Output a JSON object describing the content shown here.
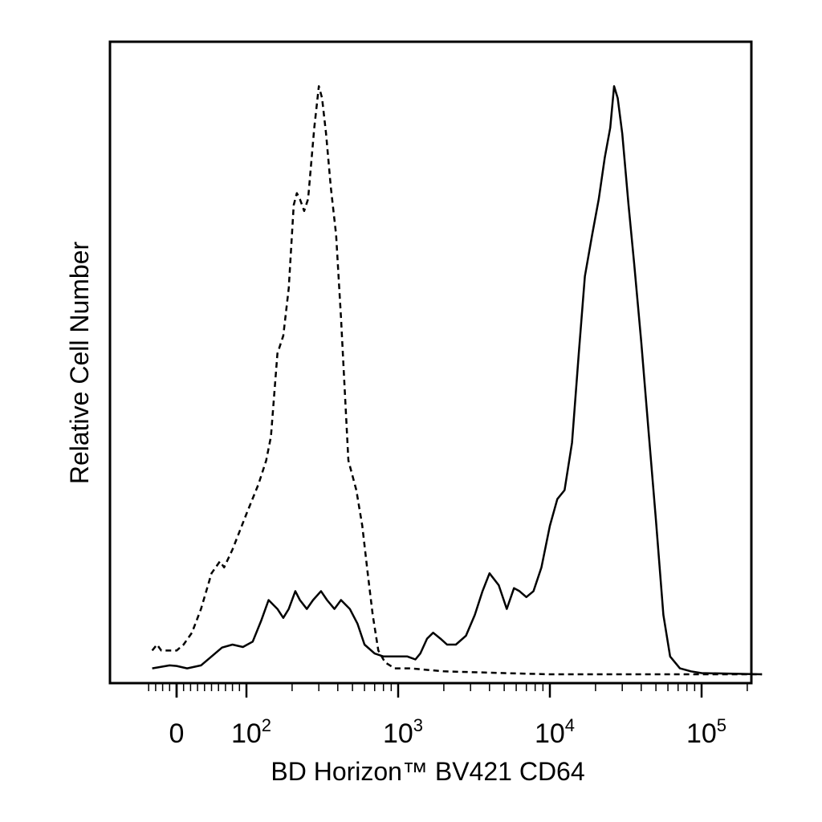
{
  "chart_data": {
    "type": "line",
    "title": "",
    "xlabel": "BD Horizon™ BV421 CD64",
    "ylabel": "Relative Cell Number",
    "x_scale": "biexponential",
    "xlim": [
      -40,
      250000
    ],
    "ylim": [
      0,
      100
    ],
    "grid": false,
    "legend": "none",
    "x_tick_labels": [
      {
        "value": 0,
        "base": "0",
        "exp": ""
      },
      {
        "value": 100,
        "base": "10",
        "exp": "2"
      },
      {
        "value": 1000,
        "base": "10",
        "exp": "3"
      },
      {
        "value": 10000,
        "base": "10",
        "exp": "4"
      },
      {
        "value": 100000,
        "base": "10",
        "exp": "5"
      }
    ],
    "series": [
      {
        "style": "dashed",
        "color": "#000000",
        "points": [
          [
            -35,
            4
          ],
          [
            -28,
            5
          ],
          [
            -22,
            4
          ],
          [
            -12,
            4
          ],
          [
            0,
            4
          ],
          [
            10,
            5
          ],
          [
            22,
            7
          ],
          [
            35,
            11
          ],
          [
            50,
            17
          ],
          [
            62,
            19
          ],
          [
            68,
            18
          ],
          [
            80,
            21
          ],
          [
            100,
            27
          ],
          [
            120,
            32
          ],
          [
            135,
            36
          ],
          [
            145,
            40
          ],
          [
            160,
            54
          ],
          [
            175,
            57
          ],
          [
            190,
            65
          ],
          [
            205,
            79
          ],
          [
            215,
            81
          ],
          [
            225,
            80
          ],
          [
            240,
            78
          ],
          [
            255,
            80
          ],
          [
            280,
            92
          ],
          [
            300,
            99
          ],
          [
            315,
            97
          ],
          [
            335,
            91
          ],
          [
            360,
            82
          ],
          [
            390,
            74
          ],
          [
            420,
            60
          ],
          [
            470,
            36
          ],
          [
            530,
            31
          ],
          [
            580,
            25
          ],
          [
            630,
            17
          ],
          [
            680,
            10
          ],
          [
            740,
            4
          ],
          [
            820,
            2
          ],
          [
            950,
            1
          ],
          [
            1200,
            1
          ],
          [
            2000,
            0.5
          ],
          [
            5000,
            0.2
          ],
          [
            10000,
            0
          ],
          [
            100000,
            0
          ],
          [
            250000,
            0
          ]
        ]
      },
      {
        "style": "solid",
        "color": "#000000",
        "points": [
          [
            -35,
            1
          ],
          [
            -20,
            1.3
          ],
          [
            -10,
            1.5
          ],
          [
            0,
            1.4
          ],
          [
            15,
            1
          ],
          [
            35,
            1.5
          ],
          [
            50,
            3
          ],
          [
            65,
            4.5
          ],
          [
            80,
            5
          ],
          [
            95,
            4.6
          ],
          [
            110,
            5.5
          ],
          [
            125,
            9
          ],
          [
            140,
            12.5
          ],
          [
            160,
            11
          ],
          [
            175,
            9.5
          ],
          [
            190,
            11
          ],
          [
            210,
            14
          ],
          [
            225,
            12.5
          ],
          [
            250,
            11
          ],
          [
            275,
            12.5
          ],
          [
            310,
            14
          ],
          [
            340,
            12.5
          ],
          [
            380,
            11
          ],
          [
            420,
            12.5
          ],
          [
            480,
            11
          ],
          [
            540,
            8.5
          ],
          [
            600,
            5
          ],
          [
            700,
            3.5
          ],
          [
            800,
            3
          ],
          [
            950,
            3
          ],
          [
            1150,
            3
          ],
          [
            1300,
            2.5
          ],
          [
            1400,
            3.5
          ],
          [
            1550,
            6
          ],
          [
            1700,
            7
          ],
          [
            1900,
            6
          ],
          [
            2100,
            5
          ],
          [
            2400,
            5
          ],
          [
            2800,
            6.5
          ],
          [
            3200,
            10
          ],
          [
            3600,
            14
          ],
          [
            4000,
            17
          ],
          [
            4600,
            15
          ],
          [
            5200,
            11
          ],
          [
            5800,
            14.5
          ],
          [
            6300,
            14
          ],
          [
            7000,
            13
          ],
          [
            7800,
            14
          ],
          [
            8800,
            18
          ],
          [
            10000,
            25
          ],
          [
            11200,
            29.5
          ],
          [
            12500,
            31
          ],
          [
            14000,
            39
          ],
          [
            15500,
            54
          ],
          [
            17000,
            67
          ],
          [
            19000,
            74
          ],
          [
            21000,
            80
          ],
          [
            23000,
            87
          ],
          [
            25000,
            92
          ],
          [
            26500,
            99
          ],
          [
            28000,
            97
          ],
          [
            30000,
            91
          ],
          [
            33000,
            79
          ],
          [
            36000,
            69
          ],
          [
            40000,
            56
          ],
          [
            45000,
            40
          ],
          [
            50000,
            26
          ],
          [
            56000,
            10
          ],
          [
            62000,
            3
          ],
          [
            72000,
            1
          ],
          [
            85000,
            0.5
          ],
          [
            100000,
            0.2
          ],
          [
            250000,
            0
          ]
        ]
      }
    ]
  }
}
